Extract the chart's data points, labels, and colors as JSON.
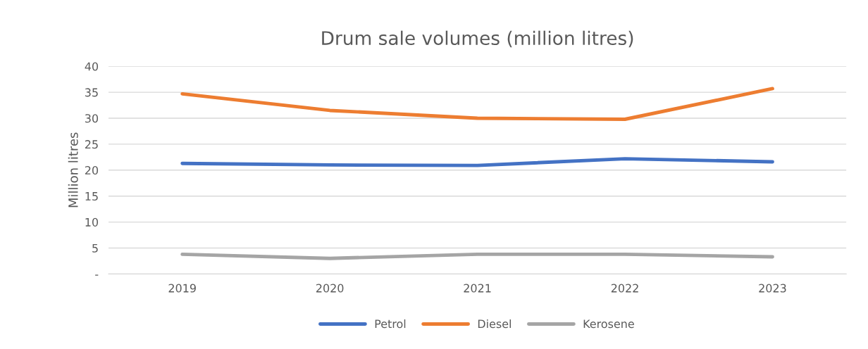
{
  "chart_data": {
    "type": "line",
    "title": "Drum sale volumes (million litres)",
    "ylabel": "Million litres",
    "categories": [
      "2019",
      "2020",
      "2021",
      "2022",
      "2023"
    ],
    "series": [
      {
        "name": "Petrol",
        "color": "#4472c4",
        "values": [
          21.3,
          21.0,
          20.9,
          22.2,
          21.6
        ]
      },
      {
        "name": "Diesel",
        "color": "#ed7d31",
        "values": [
          34.7,
          31.5,
          30.0,
          29.8,
          35.7
        ]
      },
      {
        "name": "Kerosene",
        "color": "#a5a5a5",
        "values": [
          3.8,
          3.0,
          3.8,
          3.8,
          3.3
        ]
      }
    ],
    "ylim": [
      0,
      40
    ],
    "yticks": [
      {
        "value": 0,
        "label": "-"
      },
      5,
      10,
      15,
      20,
      25,
      30,
      35,
      40
    ],
    "grid": "y",
    "legend": "bottom",
    "marker": "none",
    "line_style": "solid"
  }
}
